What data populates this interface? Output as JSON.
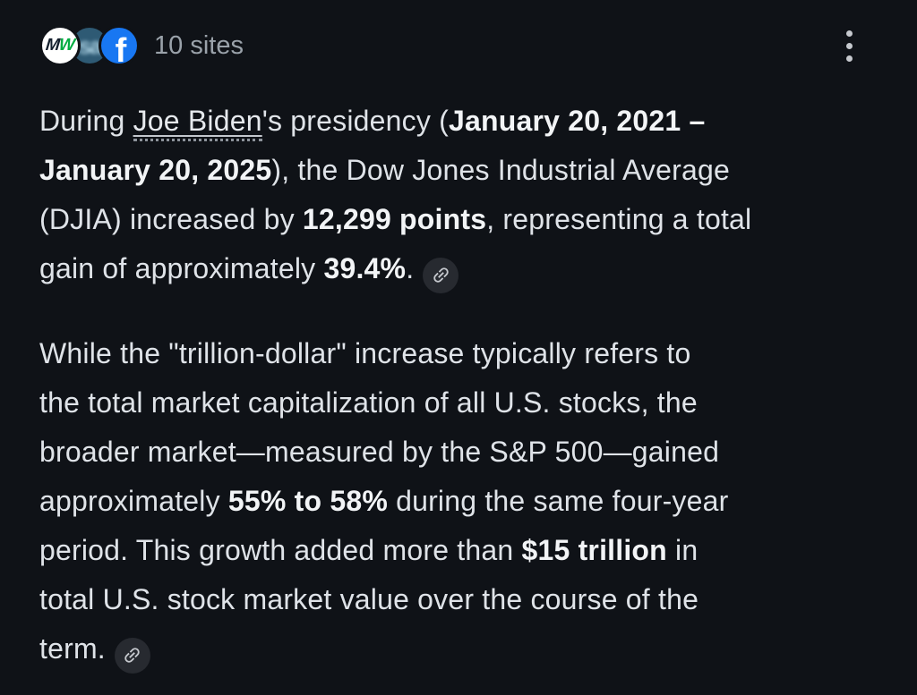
{
  "page": {
    "background_color": "#0f1217",
    "text_color": "#dfe3e8",
    "bold_text_color": "#f2f4f6"
  },
  "header": {
    "sites_label": "10 sites",
    "favicons": [
      {
        "name": "marketwatch",
        "letter1": "M",
        "letter2": "W",
        "bg": "#ffffff",
        "letter1_color": "#141f2d",
        "letter2_color": "#00ac41"
      },
      {
        "name": "seekingalpha",
        "label": "sa",
        "bg": "#2e5a74",
        "text_color": "#a9cfe0"
      },
      {
        "name": "facebook",
        "label": "f",
        "bg": "#1877f2",
        "text_color": "#ffffff"
      }
    ],
    "menu_icon": "kebab-menu-icon",
    "menu_dot_color": "#c6c9ce"
  },
  "answer": {
    "citation_icon": "link-icon",
    "citation_chip_color": "#272a30",
    "paragraphs": [
      {
        "segments": [
          {
            "t": "text",
            "v": "During "
          },
          {
            "t": "entity",
            "v": "Joe Biden"
          },
          {
            "t": "text",
            "v": "'s presidency ("
          },
          {
            "t": "bold",
            "v": "January 20, 2021 –"
          },
          {
            "t": "br"
          },
          {
            "t": "bold",
            "v": "January 20, 2025"
          },
          {
            "t": "text",
            "v": "), the Dow Jones Industrial Average"
          },
          {
            "t": "br"
          },
          {
            "t": "text",
            "v": "(DJIA) increased by "
          },
          {
            "t": "bold",
            "v": "12,299 points"
          },
          {
            "t": "text",
            "v": ", representing a total"
          },
          {
            "t": "br"
          },
          {
            "t": "text",
            "v": "gain of approximately "
          },
          {
            "t": "bold",
            "v": "39.4%"
          },
          {
            "t": "text",
            "v": "."
          },
          {
            "t": "cite"
          }
        ]
      },
      {
        "segments": [
          {
            "t": "text",
            "v": "While the \"trillion-dollar\" increase typically refers to"
          },
          {
            "t": "br"
          },
          {
            "t": "text",
            "v": "the total market capitalization of all U.S. stocks, the"
          },
          {
            "t": "br"
          },
          {
            "t": "text",
            "v": "broader market—measured by the S&P 500—gained"
          },
          {
            "t": "br"
          },
          {
            "t": "text",
            "v": "approximately "
          },
          {
            "t": "bold",
            "v": "55% to 58%"
          },
          {
            "t": "text",
            "v": " during the same four-year"
          },
          {
            "t": "br"
          },
          {
            "t": "text",
            "v": "period. This growth added more than "
          },
          {
            "t": "bold",
            "v": "$15 trillion"
          },
          {
            "t": "text",
            "v": " in"
          },
          {
            "t": "br"
          },
          {
            "t": "text",
            "v": "total U.S. stock market value over the course of the"
          },
          {
            "t": "br"
          },
          {
            "t": "text",
            "v": "term."
          },
          {
            "t": "cite"
          }
        ]
      }
    ]
  }
}
